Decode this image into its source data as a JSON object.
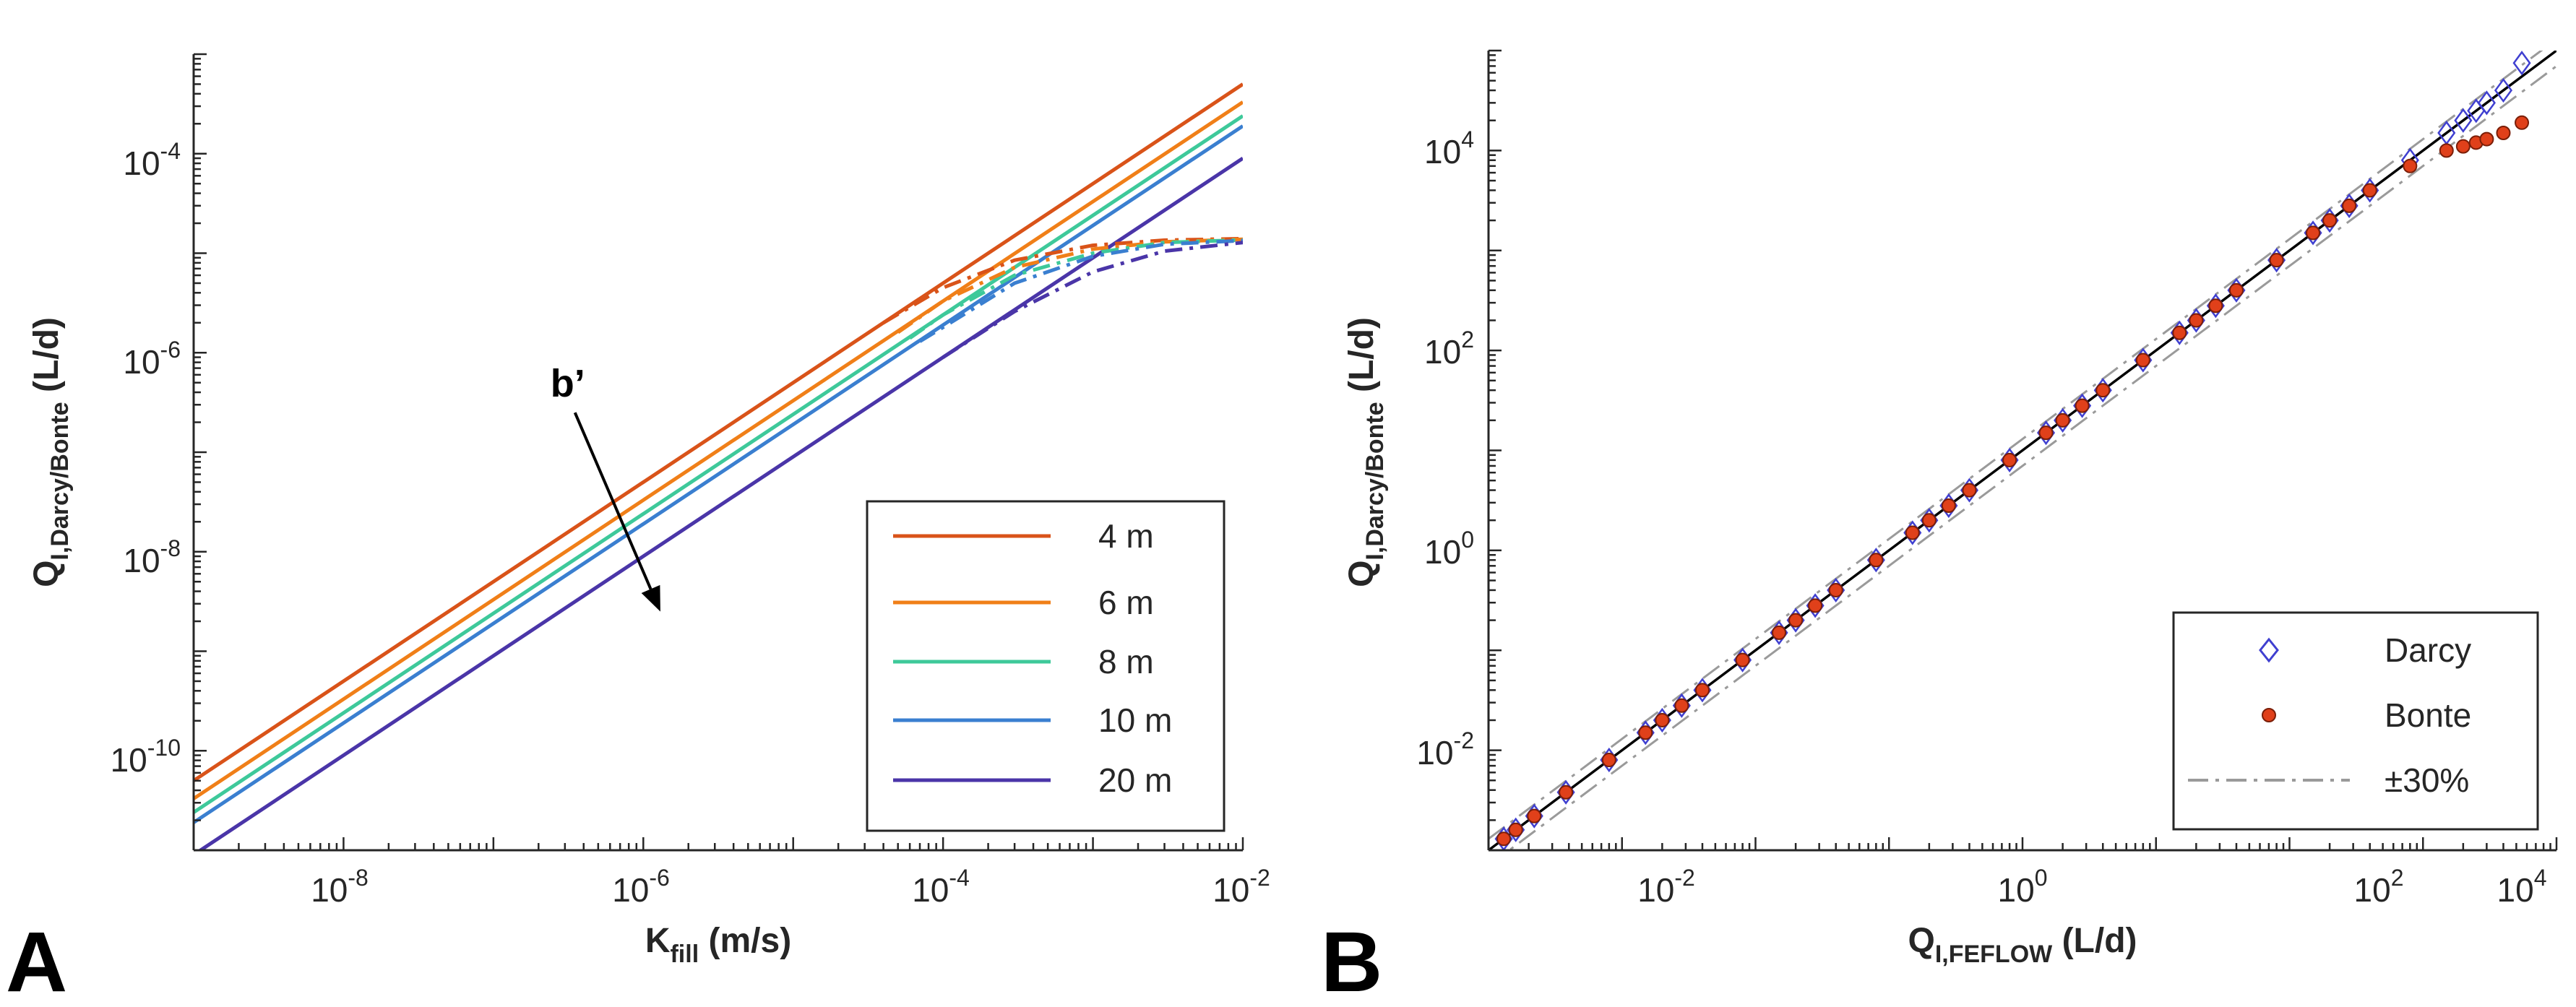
{
  "chart_data": [
    {
      "panel": "A",
      "type": "line",
      "xscale": "log",
      "yscale": "log",
      "xlim": [
        1e-09,
        0.01
      ],
      "ylim": [
        1e-11,
        0.001
      ],
      "xticks": [
        1e-08,
        1e-06,
        0.0001,
        0.01
      ],
      "xtick_labels": [
        {
          "base": "10",
          "exp": "-8"
        },
        {
          "base": "10",
          "exp": "-6"
        },
        {
          "base": "10",
          "exp": "-4"
        },
        {
          "base": "10",
          "exp": "-2"
        }
      ],
      "yticks": [
        1e-10,
        1e-08,
        1e-06,
        0.0001
      ],
      "ytick_labels": [
        {
          "base": "10",
          "exp": "-10"
        },
        {
          "base": "10",
          "exp": "-8"
        },
        {
          "base": "10",
          "exp": "-6"
        },
        {
          "base": "10",
          "exp": "-4"
        }
      ],
      "xlabel": {
        "main": "K",
        "sub": "fill",
        "unit": " (m/s)"
      },
      "ylabel": {
        "main": "Q",
        "sub": "I,Darcy/Bonte",
        "unit": " (L/d)"
      },
      "annotation": {
        "text": "b’",
        "from": [
          3.5e-07,
          2.5e-07
        ],
        "to": [
          1.3e-06,
          2.5e-09
        ]
      },
      "legend_position": "lower-right",
      "series": [
        {
          "name": "4 m",
          "color": "#d95319",
          "style": "solid",
          "x": [
            1e-09,
            0.01
          ],
          "y": [
            5e-11,
            0.0005
          ]
        },
        {
          "name": "6 m",
          "color": "#f07f18",
          "style": "solid",
          "x": [
            1e-09,
            0.01
          ],
          "y": [
            3.3e-11,
            0.00033
          ]
        },
        {
          "name": "8 m",
          "color": "#3ec99a",
          "style": "solid",
          "x": [
            1e-09,
            0.01
          ],
          "y": [
            2.4e-11,
            0.00024
          ]
        },
        {
          "name": "10 m",
          "color": "#3a7fd0",
          "style": "solid",
          "x": [
            1e-09,
            0.01
          ],
          "y": [
            1.9e-11,
            0.00019
          ]
        },
        {
          "name": "20 m",
          "color": "#4a35a8",
          "style": "solid",
          "x": [
            1e-09,
            0.01
          ],
          "y": [
            9e-12,
            9e-05
          ]
        },
        {
          "name": "4 m",
          "color": "#d95319",
          "style": "dashdot",
          "x": [
            4e-05,
            0.0001,
            0.0003,
            0.001,
            0.003,
            0.01
          ],
          "y": [
            2e-06,
            4.5e-06,
            8.5e-06,
            1.2e-05,
            1.35e-05,
            1.4e-05
          ]
        },
        {
          "name": "6 m",
          "color": "#f07f18",
          "style": "dashdot",
          "x": [
            5e-05,
            0.0001,
            0.0003,
            0.001,
            0.003,
            0.01
          ],
          "y": [
            1.6e-06,
            3.3e-06,
            7.2e-06,
            1.1e-05,
            1.3e-05,
            1.38e-05
          ]
        },
        {
          "name": "8 m",
          "color": "#3ec99a",
          "style": "dashdot",
          "x": [
            6e-05,
            0.0001,
            0.0003,
            0.001,
            0.003,
            0.01
          ],
          "y": [
            1.4e-06,
            2.4e-06,
            6e-06,
            1e-05,
            1.28e-05,
            1.36e-05
          ]
        },
        {
          "name": "10 m",
          "color": "#3a7fd0",
          "style": "dashdot",
          "x": [
            7e-05,
            0.0001,
            0.0003,
            0.001,
            0.003,
            0.01
          ],
          "y": [
            1.3e-06,
            1.8e-06,
            5e-06,
            9.3e-06,
            1.23e-05,
            1.34e-05
          ]
        },
        {
          "name": "20 m",
          "color": "#4a35a8",
          "style": "dashdot",
          "x": [
            0.0001,
            0.0003,
            0.001,
            0.003,
            0.01
          ],
          "y": [
            9e-07,
            2.6e-06,
            6.5e-06,
            1.05e-05,
            1.28e-05
          ]
        }
      ]
    },
    {
      "panel": "B",
      "type": "scatter",
      "xscale": "log",
      "yscale": "log",
      "xlim": [
        0.001,
        100000
      ],
      "ylim": [
        0.001,
        100000
      ],
      "xticks": [
        0.01,
        1,
        100,
        10000
      ],
      "xtick_labels": [
        {
          "base": "10",
          "exp": "-2"
        },
        {
          "base": "10",
          "exp": "0"
        },
        {
          "base": "10",
          "exp": "2"
        },
        {
          "base": "10",
          "exp": "4"
        }
      ],
      "yticks": [
        0.01,
        1,
        100,
        10000
      ],
      "ytick_labels": [
        {
          "base": "10",
          "exp": "-2"
        },
        {
          "base": "10",
          "exp": "0"
        },
        {
          "base": "10",
          "exp": "2"
        },
        {
          "base": "10",
          "exp": "4"
        }
      ],
      "xlabel": {
        "main": "Q",
        "sub": "I,FEFLOW",
        "unit": " (L/d)"
      },
      "ylabel": {
        "main": "Q",
        "sub": "I,Darcy/Bonte",
        "unit": " (L/d)"
      },
      "legend_position": "lower-right",
      "legend": [
        {
          "name": "Darcy",
          "marker": "diamond",
          "color": "#3f3fd0"
        },
        {
          "name": "Bonte",
          "marker": "dot",
          "color": "#e0401a"
        },
        {
          "name": "±30%",
          "marker": "dashdot",
          "color": "#9a9a9a"
        }
      ],
      "reference_lines": [
        {
          "name": "1:1",
          "factor": 1.0,
          "color": "#000000",
          "style": "solid"
        },
        {
          "name": "+30%",
          "factor": 1.3,
          "color": "#9a9a9a",
          "style": "dashdot"
        },
        {
          "name": "-30%",
          "factor": 0.7,
          "color": "#9a9a9a",
          "style": "dashdot"
        }
      ],
      "series": [
        {
          "name": "Darcy",
          "marker": "diamond",
          "color": "#3f3fd0",
          "x": [
            0.0013,
            0.0016,
            0.0022,
            0.0038,
            0.008,
            0.015,
            0.02,
            0.028,
            0.04,
            0.08,
            0.15,
            0.2,
            0.28,
            0.4,
            0.8,
            1.5,
            2,
            2.8,
            4,
            8,
            15,
            20,
            28,
            40,
            80,
            150,
            200,
            280,
            400,
            800,
            1500,
            2000,
            2800,
            4000,
            8000,
            15000,
            20000,
            25000,
            30000,
            40000,
            55000
          ],
          "y": [
            0.0013,
            0.0016,
            0.0022,
            0.0038,
            0.008,
            0.015,
            0.02,
            0.028,
            0.04,
            0.08,
            0.15,
            0.2,
            0.28,
            0.4,
            0.8,
            1.5,
            2,
            2.8,
            4,
            8,
            15,
            20,
            28,
            40,
            80,
            150,
            200,
            280,
            400,
            800,
            1500,
            2000,
            2800,
            4000,
            8000,
            15000,
            20000,
            25000,
            30000,
            40000,
            75000
          ]
        },
        {
          "name": "Bonte",
          "marker": "dot",
          "color": "#e0401a",
          "x": [
            0.0013,
            0.0016,
            0.0022,
            0.0038,
            0.008,
            0.015,
            0.02,
            0.028,
            0.04,
            0.08,
            0.15,
            0.2,
            0.28,
            0.4,
            0.8,
            1.5,
            2,
            2.8,
            4,
            8,
            15,
            20,
            28,
            40,
            80,
            150,
            200,
            280,
            400,
            800,
            1500,
            2000,
            2800,
            4000,
            8000,
            15000,
            20000,
            25000,
            30000,
            40000,
            55000
          ],
          "y": [
            0.0013,
            0.0016,
            0.0022,
            0.0038,
            0.008,
            0.015,
            0.02,
            0.028,
            0.04,
            0.08,
            0.15,
            0.2,
            0.28,
            0.4,
            0.8,
            1.5,
            2,
            2.8,
            4,
            8,
            15,
            20,
            28,
            40,
            80,
            150,
            200,
            280,
            400,
            800,
            1500,
            2000,
            2800,
            4000,
            7000,
            10000,
            11000,
            12000,
            13000,
            15000,
            19000
          ]
        }
      ]
    }
  ],
  "panel_letters": {
    "a": "A",
    "b": "B"
  }
}
